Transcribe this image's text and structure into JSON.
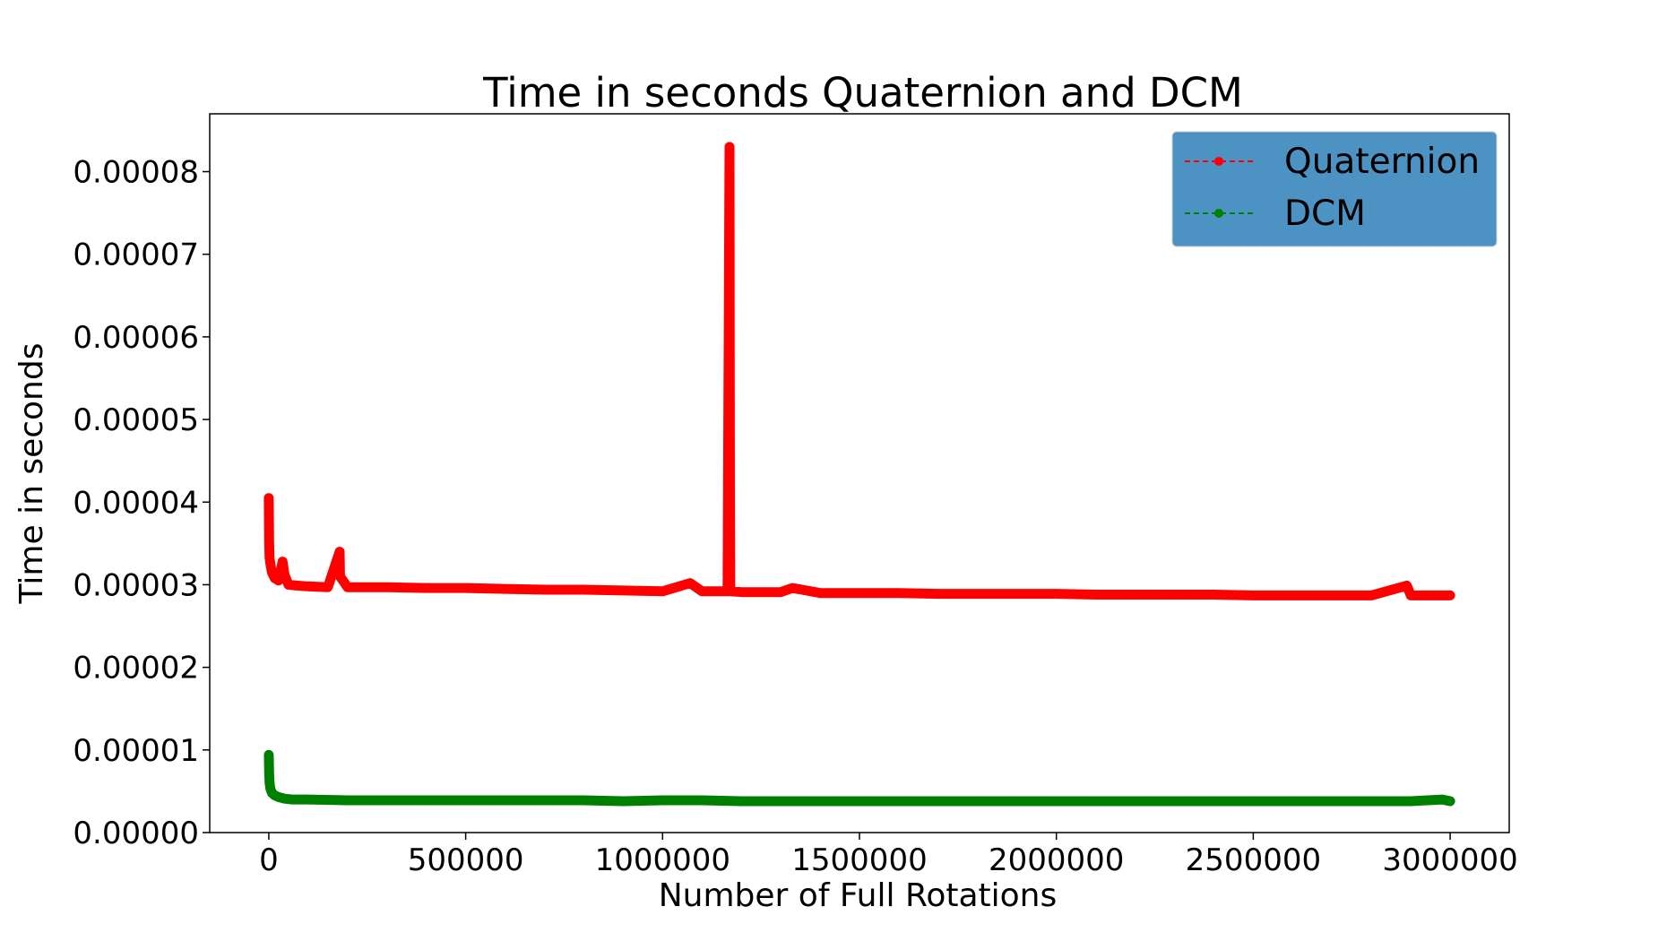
{
  "chart_data": {
    "type": "line",
    "title": "Time in seconds Quaternion and DCM",
    "xlabel": "Number of Full Rotations",
    "ylabel": "Time in seconds",
    "xlim": [
      -150000,
      3150000
    ],
    "ylim": [
      0.0,
      8.7e-05
    ],
    "xticks": [
      0,
      500000,
      1000000,
      1500000,
      2000000,
      2500000,
      3000000
    ],
    "xtick_labels": [
      "0",
      "500000",
      "1000000",
      "1500000",
      "2000000",
      "2500000",
      "3000000"
    ],
    "yticks": [
      0.0,
      1e-05,
      2e-05,
      3e-05,
      4e-05,
      5e-05,
      6e-05,
      7e-05,
      8e-05
    ],
    "ytick_labels": [
      "0.00000",
      "0.00001",
      "0.00002",
      "0.00003",
      "0.00004",
      "0.00005",
      "0.00006",
      "0.00007",
      "0.00008"
    ],
    "grid": false,
    "legend_position": "top-right",
    "legend_background": "#4c92c3",
    "series": [
      {
        "name": "Quaternion",
        "color": "#ff0000",
        "linestyle": "dashed",
        "marker": "circle",
        "x": [
          0,
          1000,
          2000,
          4000,
          8000,
          15000,
          25000,
          35000,
          40000,
          50000,
          70000,
          100000,
          150000,
          180000,
          181000,
          200000,
          300000,
          400000,
          500000,
          600000,
          700000,
          800000,
          900000,
          1000000,
          1070000,
          1100000,
          1165000,
          1170000,
          1171000,
          1172000,
          1200000,
          1300000,
          1330000,
          1400000,
          1500000,
          1600000,
          1700000,
          1800000,
          1900000,
          2000000,
          2100000,
          2200000,
          2300000,
          2400000,
          2500000,
          2600000,
          2700000,
          2800000,
          2890000,
          2900000,
          3000000
        ],
        "y": [
          4.05e-05,
          3.52e-05,
          3.32e-05,
          3.25e-05,
          3.15e-05,
          3.08e-05,
          3.05e-05,
          3.28e-05,
          3.12e-05,
          3e-05,
          2.99e-05,
          2.98e-05,
          2.97e-05,
          3.4e-05,
          3.1e-05,
          2.97e-05,
          2.97e-05,
          2.96e-05,
          2.96e-05,
          2.95e-05,
          2.94e-05,
          2.94e-05,
          2.93e-05,
          2.92e-05,
          3.02e-05,
          2.92e-05,
          2.92e-05,
          8.3e-05,
          4.78e-05,
          2.92e-05,
          2.91e-05,
          2.91e-05,
          2.96e-05,
          2.9e-05,
          2.9e-05,
          2.9e-05,
          2.89e-05,
          2.89e-05,
          2.89e-05,
          2.89e-05,
          2.88e-05,
          2.88e-05,
          2.88e-05,
          2.88e-05,
          2.87e-05,
          2.87e-05,
          2.87e-05,
          2.87e-05,
          2.99e-05,
          2.87e-05,
          2.87e-05
        ]
      },
      {
        "name": "DCM",
        "color": "#008000",
        "linestyle": "dashed",
        "marker": "circle",
        "x": [
          0,
          1000,
          2000,
          4000,
          8000,
          15000,
          25000,
          40000,
          60000,
          100000,
          200000,
          300000,
          400000,
          500000,
          600000,
          700000,
          800000,
          900000,
          1000000,
          1100000,
          1200000,
          1300000,
          1400000,
          1500000,
          1600000,
          1700000,
          1800000,
          1900000,
          2000000,
          2100000,
          2200000,
          2300000,
          2400000,
          2500000,
          2600000,
          2700000,
          2800000,
          2900000,
          2980000,
          3000000
        ],
        "y": [
          9.4e-06,
          7.3e-06,
          6e-06,
          5.3e-06,
          4.8e-06,
          4.5e-06,
          4.3e-06,
          4.1e-06,
          4e-06,
          4e-06,
          3.9e-06,
          3.9e-06,
          3.9e-06,
          3.9e-06,
          3.9e-06,
          3.9e-06,
          3.9e-06,
          3.8e-06,
          3.9e-06,
          3.9e-06,
          3.8e-06,
          3.8e-06,
          3.8e-06,
          3.8e-06,
          3.8e-06,
          3.8e-06,
          3.8e-06,
          3.8e-06,
          3.8e-06,
          3.8e-06,
          3.8e-06,
          3.8e-06,
          3.8e-06,
          3.8e-06,
          3.8e-06,
          3.8e-06,
          3.8e-06,
          3.8e-06,
          4e-06,
          3.8e-06
        ]
      }
    ]
  }
}
